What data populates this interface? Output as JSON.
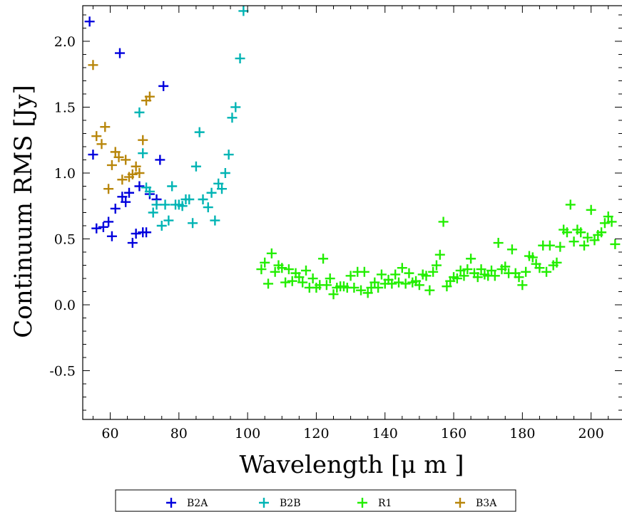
{
  "chart_data": {
    "type": "scatter",
    "marker": "plus",
    "title": "",
    "xlabel": "Wavelength [μ m ]",
    "ylabel": "Continuum RMS [Jy]",
    "xlim": [
      52,
      209
    ],
    "ylim": [
      -0.87,
      2.27
    ],
    "xticks": [
      60,
      80,
      100,
      120,
      140,
      160,
      180,
      200
    ],
    "yticks": [
      -0.5,
      0.0,
      0.5,
      1.0,
      1.5,
      2.0
    ],
    "ytick_labels": [
      "-0.5",
      "0.0",
      "0.5",
      "1.0",
      "1.5",
      "2.0"
    ],
    "grid": false,
    "legend_position": "bottom-center-below-axes",
    "series": [
      {
        "name": "B2A",
        "color": "#0000dd",
        "points": [
          [
            54.0,
            2.15
          ],
          [
            55.0,
            1.14
          ],
          [
            56.0,
            0.58
          ],
          [
            58.0,
            0.59
          ],
          [
            59.5,
            0.63
          ],
          [
            60.5,
            0.52
          ],
          [
            61.5,
            0.73
          ],
          [
            62.8,
            1.91
          ],
          [
            63.5,
            0.82
          ],
          [
            64.5,
            0.78
          ],
          [
            65.5,
            0.85
          ],
          [
            66.5,
            0.47
          ],
          [
            67.5,
            0.54
          ],
          [
            68.5,
            0.9
          ],
          [
            69.5,
            0.55
          ],
          [
            70.5,
            0.55
          ],
          [
            71.5,
            0.84
          ],
          [
            73.5,
            0.8
          ],
          [
            74.5,
            1.1
          ],
          [
            75.5,
            1.66
          ]
        ]
      },
      {
        "name": "B2B",
        "color": "#00b4b4",
        "points": [
          [
            68.5,
            1.46
          ],
          [
            69.5,
            1.15
          ],
          [
            70.5,
            0.89
          ],
          [
            71.5,
            0.86
          ],
          [
            72.5,
            0.7
          ],
          [
            73.5,
            0.76
          ],
          [
            75.0,
            0.6
          ],
          [
            76.0,
            0.76
          ],
          [
            77.0,
            0.64
          ],
          [
            78.0,
            0.9
          ],
          [
            79.0,
            0.76
          ],
          [
            80.0,
            0.76
          ],
          [
            81.0,
            0.75
          ],
          [
            82.0,
            0.8
          ],
          [
            83.0,
            0.8
          ],
          [
            84.0,
            0.62
          ],
          [
            85.0,
            1.05
          ],
          [
            86.0,
            1.31
          ],
          [
            87.0,
            0.8
          ],
          [
            88.5,
            0.74
          ],
          [
            89.5,
            0.85
          ],
          [
            90.5,
            0.64
          ],
          [
            91.5,
            0.92
          ],
          [
            92.5,
            0.88
          ],
          [
            93.5,
            1.0
          ],
          [
            94.5,
            1.14
          ],
          [
            95.5,
            1.42
          ],
          [
            96.5,
            1.5
          ],
          [
            97.8,
            1.87
          ],
          [
            98.8,
            2.23
          ]
        ]
      },
      {
        "name": "R1",
        "color": "#22ee00",
        "points": [
          [
            104.0,
            0.27
          ],
          [
            105.0,
            0.32
          ],
          [
            106.0,
            0.16
          ],
          [
            107.0,
            0.39
          ],
          [
            108.0,
            0.25
          ],
          [
            109.0,
            0.3
          ],
          [
            110.0,
            0.28
          ],
          [
            111.0,
            0.17
          ],
          [
            112.0,
            0.27
          ],
          [
            113.0,
            0.18
          ],
          [
            114.0,
            0.24
          ],
          [
            115.0,
            0.21
          ],
          [
            116.0,
            0.17
          ],
          [
            117.0,
            0.26
          ],
          [
            118.0,
            0.13
          ],
          [
            119.0,
            0.2
          ],
          [
            120.0,
            0.13
          ],
          [
            121.0,
            0.15
          ],
          [
            122.0,
            0.35
          ],
          [
            123.0,
            0.15
          ],
          [
            124.0,
            0.2
          ],
          [
            125.0,
            0.08
          ],
          [
            126.0,
            0.13
          ],
          [
            127.0,
            0.14
          ],
          [
            128.0,
            0.14
          ],
          [
            129.0,
            0.13
          ],
          [
            130.0,
            0.22
          ],
          [
            131.0,
            0.13
          ],
          [
            132.0,
            0.25
          ],
          [
            133.0,
            0.11
          ],
          [
            134.0,
            0.25
          ],
          [
            135.0,
            0.09
          ],
          [
            136.0,
            0.13
          ],
          [
            137.0,
            0.17
          ],
          [
            138.0,
            0.13
          ],
          [
            139.0,
            0.23
          ],
          [
            140.0,
            0.16
          ],
          [
            141.0,
            0.19
          ],
          [
            142.0,
            0.16
          ],
          [
            143.0,
            0.23
          ],
          [
            144.0,
            0.17
          ],
          [
            145.0,
            0.28
          ],
          [
            146.0,
            0.16
          ],
          [
            147.0,
            0.24
          ],
          [
            148.0,
            0.17
          ],
          [
            149.0,
            0.18
          ],
          [
            150.0,
            0.15
          ],
          [
            151.0,
            0.23
          ],
          [
            152.0,
            0.22
          ],
          [
            153.0,
            0.11
          ],
          [
            154.0,
            0.25
          ],
          [
            155.0,
            0.3
          ],
          [
            156.0,
            0.38
          ],
          [
            157.0,
            0.63
          ],
          [
            158.0,
            0.14
          ],
          [
            159.0,
            0.18
          ],
          [
            160.0,
            0.21
          ],
          [
            161.0,
            0.2
          ],
          [
            162.0,
            0.26
          ],
          [
            163.0,
            0.22
          ],
          [
            164.0,
            0.27
          ],
          [
            165.0,
            0.35
          ],
          [
            166.0,
            0.24
          ],
          [
            167.0,
            0.21
          ],
          [
            168.0,
            0.27
          ],
          [
            169.0,
            0.23
          ],
          [
            170.0,
            0.22
          ],
          [
            171.0,
            0.26
          ],
          [
            172.0,
            0.22
          ],
          [
            173.0,
            0.47
          ],
          [
            174.0,
            0.27
          ],
          [
            175.0,
            0.29
          ],
          [
            176.0,
            0.24
          ],
          [
            177.0,
            0.42
          ],
          [
            178.0,
            0.24
          ],
          [
            179.0,
            0.21
          ],
          [
            180.0,
            0.15
          ],
          [
            181.0,
            0.25
          ],
          [
            182.0,
            0.37
          ],
          [
            183.0,
            0.36
          ],
          [
            184.0,
            0.31
          ],
          [
            185.0,
            0.28
          ],
          [
            186.0,
            0.45
          ],
          [
            187.0,
            0.25
          ],
          [
            188.0,
            0.45
          ],
          [
            189.0,
            0.3
          ],
          [
            190.0,
            0.32
          ],
          [
            191.0,
            0.44
          ],
          [
            192.0,
            0.57
          ],
          [
            193.0,
            0.55
          ],
          [
            194.0,
            0.76
          ],
          [
            195.0,
            0.48
          ],
          [
            196.0,
            0.57
          ],
          [
            197.0,
            0.55
          ],
          [
            198.0,
            0.45
          ],
          [
            199.0,
            0.51
          ],
          [
            200.0,
            0.72
          ],
          [
            201.0,
            0.49
          ],
          [
            202.0,
            0.53
          ],
          [
            203.0,
            0.55
          ],
          [
            204.0,
            0.62
          ],
          [
            205.0,
            0.67
          ],
          [
            206.0,
            0.63
          ],
          [
            207.0,
            0.46
          ]
        ]
      },
      {
        "name": "B3A",
        "color": "#b8860b",
        "points": [
          [
            55.0,
            1.82
          ],
          [
            56.0,
            1.28
          ],
          [
            57.5,
            1.22
          ],
          [
            58.5,
            1.35
          ],
          [
            59.5,
            0.88
          ],
          [
            60.5,
            1.06
          ],
          [
            61.5,
            1.16
          ],
          [
            62.5,
            1.12
          ],
          [
            63.5,
            0.95
          ],
          [
            64.5,
            1.1
          ],
          [
            65.5,
            0.97
          ],
          [
            66.5,
            0.99
          ],
          [
            67.5,
            1.05
          ],
          [
            68.5,
            1.0
          ],
          [
            69.5,
            1.25
          ],
          [
            70.5,
            1.55
          ],
          [
            71.5,
            1.58
          ]
        ]
      }
    ]
  }
}
